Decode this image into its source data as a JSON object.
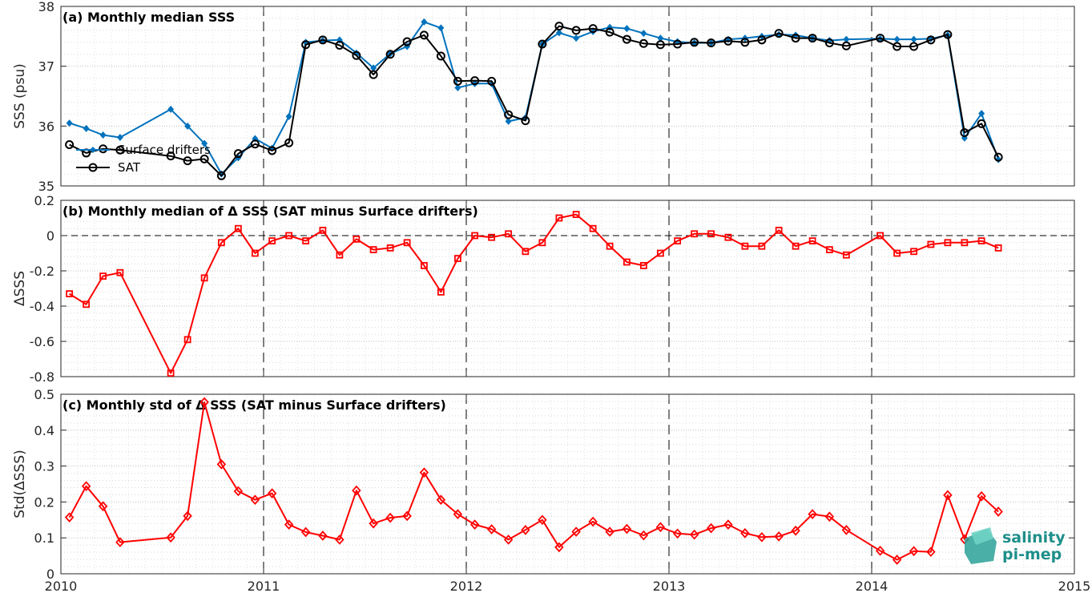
{
  "chart_data": [
    {
      "type": "line",
      "title": "(a) Monthly median SSS",
      "xlabel": "",
      "ylabel": "SSS (psu)",
      "xlim": [
        2010,
        2015
      ],
      "ylim": [
        35,
        38
      ],
      "xticks": [
        "2010",
        "2011",
        "2012",
        "2013",
        "2014",
        "2015"
      ],
      "yticks": [
        "35",
        "36",
        "37",
        "38"
      ],
      "grid": "minor dotted",
      "legend": "left",
      "series": [
        {
          "name": "Surface drifters",
          "color": "#0072bd",
          "marker": "diamond",
          "points": [
            [
              2010.042,
              36.05
            ],
            [
              2010.125,
              35.96
            ],
            [
              2010.208,
              35.85
            ],
            [
              2010.292,
              35.81
            ],
            [
              2010.542,
              36.28
            ],
            [
              2010.625,
              36.0
            ],
            [
              2010.708,
              35.71
            ],
            [
              2010.792,
              35.2
            ],
            [
              2010.875,
              35.47
            ],
            [
              2010.958,
              35.79
            ],
            [
              2011.042,
              35.63
            ],
            [
              2011.125,
              36.16
            ],
            [
              2011.208,
              37.4
            ],
            [
              2011.292,
              37.43
            ],
            [
              2011.375,
              37.44
            ],
            [
              2011.458,
              37.22
            ],
            [
              2011.542,
              36.97
            ],
            [
              2011.625,
              37.21
            ],
            [
              2011.708,
              37.33
            ],
            [
              2011.792,
              37.74
            ],
            [
              2011.875,
              37.64
            ],
            [
              2011.958,
              36.64
            ],
            [
              2012.042,
              36.71
            ],
            [
              2012.125,
              36.71
            ],
            [
              2012.208,
              36.08
            ],
            [
              2012.292,
              36.14
            ],
            [
              2012.375,
              37.37
            ],
            [
              2012.458,
              37.56
            ],
            [
              2012.542,
              37.47
            ],
            [
              2012.625,
              37.58
            ],
            [
              2012.708,
              37.65
            ],
            [
              2012.792,
              37.63
            ],
            [
              2012.875,
              37.55
            ],
            [
              2012.958,
              37.47
            ],
            [
              2013.042,
              37.41
            ],
            [
              2013.125,
              37.39
            ],
            [
              2013.208,
              37.39
            ],
            [
              2013.292,
              37.45
            ],
            [
              2013.375,
              37.47
            ],
            [
              2013.458,
              37.5
            ],
            [
              2013.542,
              37.53
            ],
            [
              2013.625,
              37.52
            ],
            [
              2013.708,
              37.47
            ],
            [
              2013.792,
              37.43
            ],
            [
              2013.875,
              37.45
            ],
            [
              2014.042,
              37.46
            ],
            [
              2014.125,
              37.45
            ],
            [
              2014.208,
              37.45
            ],
            [
              2014.292,
              37.46
            ],
            [
              2014.375,
              37.52
            ],
            [
              2014.458,
              35.8
            ],
            [
              2014.542,
              36.21
            ],
            [
              2014.625,
              35.44
            ]
          ]
        },
        {
          "name": "SAT",
          "color": "#000000",
          "marker": "circle",
          "points": [
            [
              2010.042,
              35.69
            ],
            [
              2010.125,
              35.55
            ],
            [
              2010.208,
              35.62
            ],
            [
              2010.292,
              35.6
            ],
            [
              2010.542,
              35.5
            ],
            [
              2010.625,
              35.42
            ],
            [
              2010.708,
              35.45
            ],
            [
              2010.792,
              35.17
            ],
            [
              2010.875,
              35.54
            ],
            [
              2010.958,
              35.7
            ],
            [
              2011.042,
              35.59
            ],
            [
              2011.125,
              35.72
            ],
            [
              2011.208,
              37.36
            ],
            [
              2011.292,
              37.44
            ],
            [
              2011.375,
              37.35
            ],
            [
              2011.458,
              37.18
            ],
            [
              2011.542,
              36.86
            ],
            [
              2011.625,
              37.2
            ],
            [
              2011.708,
              37.41
            ],
            [
              2011.792,
              37.52
            ],
            [
              2011.875,
              37.17
            ],
            [
              2011.958,
              36.75
            ],
            [
              2012.042,
              36.76
            ],
            [
              2012.125,
              36.75
            ],
            [
              2012.208,
              36.19
            ],
            [
              2012.292,
              36.09
            ],
            [
              2012.375,
              37.37
            ],
            [
              2012.458,
              37.67
            ],
            [
              2012.542,
              37.6
            ],
            [
              2012.625,
              37.63
            ],
            [
              2012.708,
              37.57
            ],
            [
              2012.792,
              37.45
            ],
            [
              2012.875,
              37.38
            ],
            [
              2012.958,
              37.36
            ],
            [
              2013.042,
              37.37
            ],
            [
              2013.125,
              37.4
            ],
            [
              2013.208,
              37.39
            ],
            [
              2013.292,
              37.42
            ],
            [
              2013.375,
              37.4
            ],
            [
              2013.458,
              37.44
            ],
            [
              2013.542,
              37.55
            ],
            [
              2013.625,
              37.47
            ],
            [
              2013.708,
              37.47
            ],
            [
              2013.792,
              37.39
            ],
            [
              2013.875,
              37.34
            ],
            [
              2014.042,
              37.47
            ],
            [
              2014.125,
              37.33
            ],
            [
              2014.208,
              37.33
            ],
            [
              2014.292,
              37.44
            ],
            [
              2014.375,
              37.53
            ],
            [
              2014.458,
              35.89
            ],
            [
              2014.542,
              36.04
            ],
            [
              2014.625,
              35.48
            ]
          ]
        }
      ]
    },
    {
      "type": "line",
      "title": "(b) Monthly median of Δ SSS (SAT minus Surface drifters)",
      "xlabel": "",
      "ylabel": "ΔSSS",
      "xlim": [
        2010,
        2015
      ],
      "ylim": [
        -0.8,
        0.2
      ],
      "xticks": [
        "2010",
        "2011",
        "2012",
        "2013",
        "2014",
        "2015"
      ],
      "yticks": [
        "-0.8",
        "-0.6",
        "-0.4",
        "-0.2",
        "0",
        "0.2"
      ],
      "zero_line": "dashed",
      "series": [
        {
          "color": "#ff0000",
          "marker": "square",
          "points": [
            [
              2010.042,
              -0.33
            ],
            [
              2010.125,
              -0.39
            ],
            [
              2010.208,
              -0.23
            ],
            [
              2010.292,
              -0.21
            ],
            [
              2010.542,
              -0.78
            ],
            [
              2010.625,
              -0.59
            ],
            [
              2010.708,
              -0.24
            ],
            [
              2010.792,
              -0.04
            ],
            [
              2010.875,
              0.04
            ],
            [
              2010.958,
              -0.1
            ],
            [
              2011.042,
              -0.03
            ],
            [
              2011.125,
              0.0
            ],
            [
              2011.208,
              -0.03
            ],
            [
              2011.292,
              0.03
            ],
            [
              2011.375,
              -0.11
            ],
            [
              2011.458,
              -0.02
            ],
            [
              2011.542,
              -0.08
            ],
            [
              2011.625,
              -0.07
            ],
            [
              2011.708,
              -0.04
            ],
            [
              2011.792,
              -0.17
            ],
            [
              2011.875,
              -0.32
            ],
            [
              2011.958,
              -0.13
            ],
            [
              2012.042,
              0.0
            ],
            [
              2012.125,
              -0.01
            ],
            [
              2012.208,
              0.01
            ],
            [
              2012.292,
              -0.09
            ],
            [
              2012.375,
              -0.04
            ],
            [
              2012.458,
              0.1
            ],
            [
              2012.542,
              0.12
            ],
            [
              2012.625,
              0.04
            ],
            [
              2012.708,
              -0.06
            ],
            [
              2012.792,
              -0.15
            ],
            [
              2012.875,
              -0.17
            ],
            [
              2012.958,
              -0.1
            ],
            [
              2013.042,
              -0.03
            ],
            [
              2013.125,
              0.01
            ],
            [
              2013.208,
              0.01
            ],
            [
              2013.292,
              -0.01
            ],
            [
              2013.375,
              -0.06
            ],
            [
              2013.458,
              -0.06
            ],
            [
              2013.542,
              0.03
            ],
            [
              2013.625,
              -0.06
            ],
            [
              2013.708,
              -0.03
            ],
            [
              2013.792,
              -0.08
            ],
            [
              2013.875,
              -0.11
            ],
            [
              2014.042,
              0.0
            ],
            [
              2014.125,
              -0.1
            ],
            [
              2014.208,
              -0.09
            ],
            [
              2014.292,
              -0.05
            ],
            [
              2014.375,
              -0.04
            ],
            [
              2014.458,
              -0.04
            ],
            [
              2014.542,
              -0.03
            ],
            [
              2014.625,
              -0.07
            ]
          ]
        }
      ]
    },
    {
      "type": "line",
      "title": "(c) Monthly std of Δ SSS (SAT minus Surface drifters)",
      "xlabel": "",
      "ylabel": "Std(ΔSSS)",
      "xlim": [
        2010,
        2015
      ],
      "ylim": [
        0,
        0.5
      ],
      "xticks": [
        "2010",
        "2011",
        "2012",
        "2013",
        "2014",
        "2015"
      ],
      "yticks": [
        "0",
        "0.1",
        "0.2",
        "0.3",
        "0.4",
        "0.5"
      ],
      "series": [
        {
          "color": "#ff0000",
          "marker": "diamond",
          "points": [
            [
              2010.042,
              0.157
            ],
            [
              2010.125,
              0.244
            ],
            [
              2010.208,
              0.188
            ],
            [
              2010.292,
              0.088
            ],
            [
              2010.542,
              0.101
            ],
            [
              2010.625,
              0.161
            ],
            [
              2010.708,
              0.478
            ],
            [
              2010.792,
              0.305
            ],
            [
              2010.875,
              0.23
            ],
            [
              2010.958,
              0.206
            ],
            [
              2011.042,
              0.224
            ],
            [
              2011.125,
              0.137
            ],
            [
              2011.208,
              0.116
            ],
            [
              2011.292,
              0.106
            ],
            [
              2011.375,
              0.095
            ],
            [
              2011.458,
              0.232
            ],
            [
              2011.542,
              0.14
            ],
            [
              2011.625,
              0.156
            ],
            [
              2011.708,
              0.161
            ],
            [
              2011.792,
              0.282
            ],
            [
              2011.875,
              0.206
            ],
            [
              2011.958,
              0.166
            ],
            [
              2012.042,
              0.137
            ],
            [
              2012.125,
              0.124
            ],
            [
              2012.208,
              0.095
            ],
            [
              2012.292,
              0.122
            ],
            [
              2012.375,
              0.15
            ],
            [
              2012.458,
              0.074
            ],
            [
              2012.542,
              0.117
            ],
            [
              2012.625,
              0.145
            ],
            [
              2012.708,
              0.117
            ],
            [
              2012.792,
              0.125
            ],
            [
              2012.875,
              0.107
            ],
            [
              2012.958,
              0.13
            ],
            [
              2013.042,
              0.112
            ],
            [
              2013.125,
              0.109
            ],
            [
              2013.208,
              0.127
            ],
            [
              2013.292,
              0.137
            ],
            [
              2013.375,
              0.113
            ],
            [
              2013.458,
              0.102
            ],
            [
              2013.542,
              0.104
            ],
            [
              2013.625,
              0.12
            ],
            [
              2013.708,
              0.166
            ],
            [
              2013.792,
              0.159
            ],
            [
              2013.875,
              0.122
            ],
            [
              2014.042,
              0.064
            ],
            [
              2014.125,
              0.039
            ],
            [
              2014.208,
              0.063
            ],
            [
              2014.292,
              0.061
            ],
            [
              2014.375,
              0.219
            ],
            [
              2014.458,
              0.096
            ],
            [
              2014.542,
              0.216
            ],
            [
              2014.625,
              0.173
            ]
          ]
        }
      ]
    }
  ],
  "logo": {
    "line1": "salinity",
    "line2": "pi-mep"
  }
}
